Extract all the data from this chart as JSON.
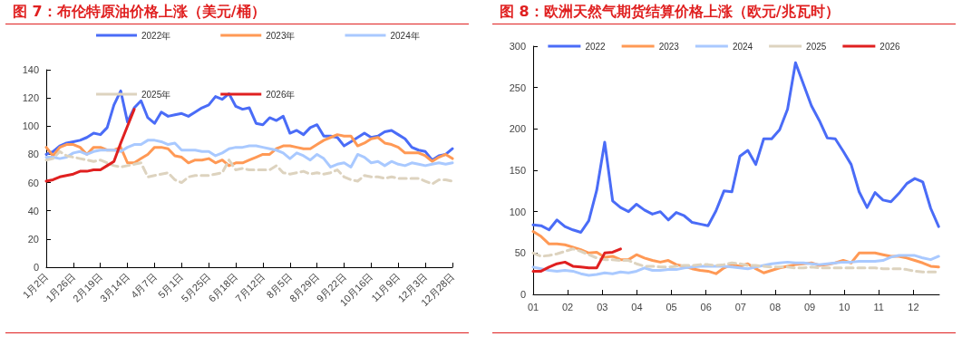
{
  "chart_data": [
    {
      "type": "line",
      "title": "图 7：布伦特原油价格上涨（美元/桶）",
      "categories": [
        "1月2日",
        null,
        null,
        null,
        "1月26日",
        null,
        null,
        null,
        "2月19日",
        null,
        null,
        null,
        "3月14日",
        null,
        null,
        null,
        "4月7日",
        null,
        null,
        null,
        "5月1日",
        null,
        null,
        null,
        "5月25日",
        null,
        null,
        null,
        "6月18日",
        null,
        null,
        null,
        "7月12日",
        null,
        null,
        null,
        "8月5日",
        null,
        null,
        null,
        "8月29日",
        null,
        null,
        null,
        "9月22日",
        null,
        null,
        null,
        "10月16日",
        null,
        null,
        null,
        "11月9日",
        null,
        null,
        null,
        "12月3日",
        null,
        null,
        null,
        "12月28日"
      ],
      "series": [
        {
          "name": "2022年",
          "color": "#4a6cf7",
          "values": [
            80,
            82,
            86,
            88,
            89,
            90,
            92,
            95,
            94,
            99,
            115,
            125,
            103,
            113,
            118,
            106,
            102,
            110,
            107,
            108,
            109,
            107,
            110,
            113,
            115,
            121,
            119,
            123,
            114,
            112,
            113,
            102,
            101,
            106,
            104,
            107,
            95,
            97,
            94,
            99,
            101,
            93,
            93,
            92,
            86,
            89,
            92,
            95,
            92,
            93,
            96,
            97,
            94,
            91,
            85,
            83,
            82,
            76,
            79,
            80,
            84
          ]
        },
        {
          "name": "2023年",
          "color": "#ff9955",
          "values": [
            85,
            79,
            85,
            87,
            87,
            85,
            80,
            85,
            85,
            83,
            83,
            85,
            74,
            74,
            77,
            80,
            85,
            85,
            84,
            79,
            78,
            74,
            76,
            76,
            77,
            74,
            76,
            72,
            74,
            74,
            76,
            78,
            80,
            80,
            84,
            86,
            86,
            85,
            84,
            84,
            87,
            90,
            92,
            94,
            93,
            93,
            86,
            88,
            91,
            92,
            88,
            87,
            85,
            81,
            81,
            81,
            79,
            75,
            78,
            80,
            77
          ]
        },
        {
          "name": "2024年",
          "color": "#a9c9ff",
          "values": [
            78,
            78,
            77,
            78,
            81,
            82,
            80,
            82,
            83,
            83,
            83,
            82,
            85,
            87,
            87,
            90,
            90,
            89,
            87,
            88,
            83,
            83,
            83,
            82,
            82,
            79,
            81,
            84,
            85,
            85,
            86,
            86,
            85,
            84,
            83,
            81,
            77,
            81,
            79,
            76,
            80,
            77,
            71,
            73,
            74,
            71,
            80,
            78,
            74,
            75,
            72,
            75,
            73,
            72,
            74,
            73,
            72,
            73,
            74,
            73,
            74
          ]
        },
        {
          "name": "2025年",
          "color": "#ddd3bf",
          "line_style": "dashed",
          "values": [
            76,
            77,
            82,
            79,
            78,
            77,
            76,
            75,
            76,
            74,
            72,
            71,
            72,
            73,
            74,
            64,
            65,
            66,
            67,
            62,
            60,
            64,
            65,
            65,
            65,
            66,
            67,
            76,
            69,
            70,
            69,
            69,
            69,
            69,
            72,
            67,
            66,
            67,
            68,
            66,
            67,
            66,
            67,
            69,
            64,
            62,
            61,
            65,
            64,
            64,
            63,
            64,
            63,
            63,
            63,
            63,
            61,
            59,
            62,
            62,
            61
          ]
        },
        {
          "name": "2026年",
          "color": "#e02020",
          "values": [
            61,
            62,
            64,
            65,
            66,
            68,
            68,
            69,
            69,
            72,
            75,
            88,
            100,
            112,
            null,
            null,
            null,
            null,
            null,
            null,
            null,
            null,
            null,
            null,
            null,
            null,
            null,
            null,
            null,
            null,
            null,
            null,
            null,
            null,
            null,
            null,
            null,
            null,
            null,
            null,
            null,
            null,
            null,
            null,
            null,
            null,
            null,
            null,
            null,
            null,
            null,
            null,
            null,
            null,
            null,
            null,
            null,
            null,
            null,
            null,
            null
          ]
        }
      ],
      "ylim": [
        0,
        140
      ],
      "yticks": [
        0,
        20,
        40,
        60,
        80,
        100,
        120,
        140
      ],
      "grid": false,
      "legend": "top",
      "marker": "none",
      "line_style": "solid"
    },
    {
      "type": "line",
      "title": "图 8：欧洲天然气期货结算价格上涨（欧元/兆瓦时）",
      "x": [
        1,
        1.23,
        1.46,
        1.69,
        1.92,
        2.15,
        2.38,
        2.61,
        2.84,
        3.07,
        3.3,
        3.53,
        3.76,
        3.99,
        4.22,
        4.45,
        4.68,
        4.91,
        5.14,
        5.37,
        5.6,
        5.83,
        6.06,
        6.29,
        6.52,
        6.75,
        6.98,
        7.21,
        7.44,
        7.67,
        7.9,
        8.13,
        8.36,
        8.59,
        8.82,
        9.05,
        9.28,
        9.51,
        9.74,
        9.97,
        10.2,
        10.43,
        10.66,
        10.89,
        11.12,
        11.35,
        11.58,
        11.81,
        12.04,
        12.27,
        12.5,
        12.73
      ],
      "series": [
        {
          "name": "2022",
          "color": "#4a6cf7",
          "values": [
            84,
            83,
            78,
            90,
            82,
            78,
            75,
            89,
            126,
            184,
            113,
            105,
            100,
            109,
            102,
            97,
            100,
            90,
            99,
            95,
            87,
            85,
            83,
            101,
            125,
            124,
            167,
            174,
            157,
            188,
            188,
            199,
            224,
            280,
            254,
            228,
            210,
            189,
            188,
            173,
            157,
            124,
            105,
            123,
            114,
            112,
            122,
            134,
            140,
            136,
            104,
            82
          ]
        },
        {
          "name": "2023",
          "color": "#ff9955",
          "values": [
            76,
            70,
            61,
            61,
            60,
            57,
            54,
            50,
            51,
            45,
            46,
            42,
            42,
            48,
            44,
            41,
            39,
            41,
            36,
            34,
            31,
            29,
            28,
            25,
            32,
            36,
            34,
            37,
            31,
            26,
            29,
            32,
            34,
            36,
            37,
            38,
            35,
            36,
            38,
            41,
            38,
            50,
            50,
            50,
            48,
            46,
            46,
            44,
            41,
            38,
            34,
            33
          ]
        },
        {
          "name": "2024",
          "color": "#a9c9ff",
          "values": [
            33,
            31,
            29,
            28,
            29,
            28,
            25,
            23,
            24,
            26,
            25,
            27,
            26,
            28,
            32,
            29,
            29,
            30,
            30,
            32,
            33,
            34,
            34,
            34,
            34,
            33,
            32,
            31,
            33,
            35,
            37,
            38,
            39,
            38,
            38,
            37,
            36,
            37,
            38,
            39,
            39,
            40,
            40,
            40,
            41,
            45,
            47,
            47,
            47,
            44,
            42,
            46
          ]
        },
        {
          "name": "2025",
          "color": "#ddd3bf",
          "line_style": "dashed",
          "values": [
            50,
            46,
            47,
            49,
            52,
            55,
            52,
            48,
            44,
            42,
            42,
            41,
            41,
            37,
            34,
            34,
            33,
            33,
            34,
            35,
            35,
            36,
            36,
            35,
            36,
            38,
            37,
            35,
            35,
            34,
            33,
            33,
            33,
            32,
            32,
            33,
            32,
            32,
            32,
            32,
            32,
            32,
            32,
            32,
            31,
            31,
            31,
            30,
            28,
            27,
            27,
            27
          ]
        },
        {
          "name": "2026",
          "color": "#e02020",
          "values": [
            28,
            28,
            33,
            37,
            39,
            34,
            33,
            32,
            32,
            50,
            51,
            55,
            null,
            null,
            null,
            null,
            null,
            null,
            null,
            null,
            null,
            null,
            null,
            null,
            null,
            null,
            null,
            null,
            null,
            null,
            null,
            null,
            null,
            null,
            null,
            null,
            null,
            null,
            null,
            null,
            null,
            null,
            null,
            null,
            null,
            null,
            null,
            null,
            null,
            null,
            null,
            null
          ]
        }
      ],
      "xlim": [
        1,
        12.75
      ],
      "xticks": [
        {
          "value": 1,
          "label": "01"
        },
        {
          "value": 2,
          "label": "02"
        },
        {
          "value": 3,
          "label": "03"
        },
        {
          "value": 4,
          "label": "04"
        },
        {
          "value": 5,
          "label": "05"
        },
        {
          "value": 6,
          "label": "06"
        },
        {
          "value": 7,
          "label": "07"
        },
        {
          "value": 8,
          "label": "08"
        },
        {
          "value": 9,
          "label": "09"
        },
        {
          "value": 10,
          "label": "10"
        },
        {
          "value": 11,
          "label": "11"
        },
        {
          "value": 12,
          "label": "12"
        }
      ],
      "ylim": [
        0,
        300
      ],
      "yticks": [
        0,
        50,
        100,
        150,
        200,
        250,
        300
      ],
      "grid": false,
      "legend": "top",
      "marker": "none",
      "line_style": "solid"
    }
  ]
}
